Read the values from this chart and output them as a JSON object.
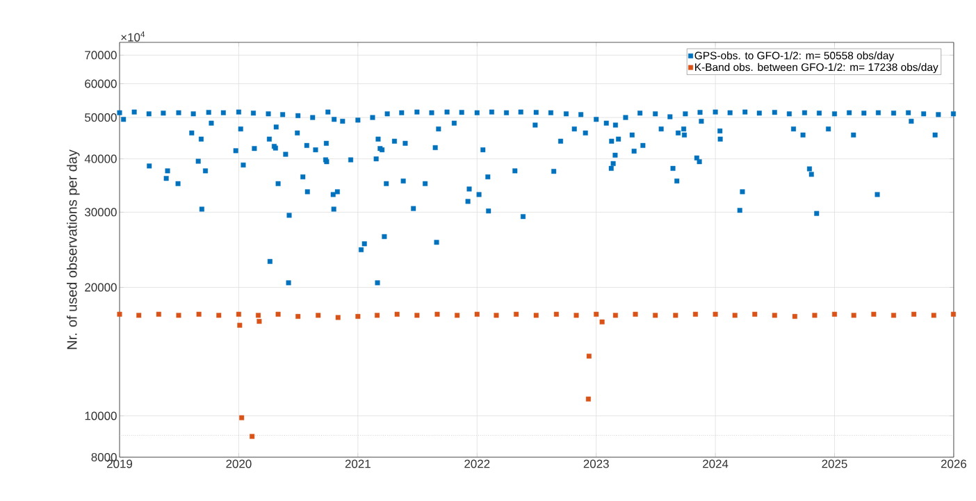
{
  "chart_data": {
    "type": "scatter",
    "ylabel": "Nr. of used observations per day",
    "annotations": [
      "×10$^{4}$"
    ],
    "log": "y",
    "grid": true,
    "legend": "top right",
    "marker": "square",
    "xlim": [
      "2019-01-01",
      "2026-01-01"
    ],
    "xticks": [
      {
        "value": "2019-01-01",
        "label": "2019"
      },
      {
        "value": "2020-01-01",
        "label": "2020"
      },
      {
        "value": "2021-01-01",
        "label": "2021"
      },
      {
        "value": "2022-01-01",
        "label": "2022"
      },
      {
        "value": "2023-01-01",
        "label": "2023"
      },
      {
        "value": "2024-01-01",
        "label": "2024"
      },
      {
        "value": "2025-01-01",
        "label": "2025"
      },
      {
        "value": "2026-01-01",
        "label": "2026"
      }
    ],
    "ylim": [
      8000,
      75000
    ],
    "yticks": [
      8000,
      10000,
      20000,
      30000,
      40000,
      50000,
      60000,
      70000
    ],
    "ref_lines": [
      {
        "axis": "y",
        "value": 9000,
        "label": null,
        "color": "#bbbbbb",
        "line_style": "dotted"
      }
    ],
    "series": [
      {
        "name": "GPS-obs. to GFO-1/2: m= 50558 obs/day",
        "color": "#0072bd",
        "x": [
          "2019-01-01",
          "2019-02-15",
          "2019-04-01",
          "2019-05-15",
          "2019-07-01",
          "2019-08-15",
          "2019-10-01",
          "2019-11-15",
          "2020-01-01",
          "2020-02-15",
          "2020-04-01",
          "2020-05-15",
          "2020-07-01",
          "2020-08-15",
          "2020-10-01",
          "2020-10-20",
          "2020-11-15",
          "2021-01-01",
          "2021-02-15",
          "2021-04-01",
          "2021-05-15",
          "2021-07-01",
          "2021-08-15",
          "2021-10-01",
          "2021-11-15",
          "2022-01-01",
          "2022-02-15",
          "2022-04-01",
          "2022-05-15",
          "2022-07-01",
          "2022-08-15",
          "2022-10-01",
          "2022-11-15",
          "2023-01-01",
          "2023-02-01",
          "2023-03-01",
          "2023-04-01",
          "2023-05-15",
          "2023-07-01",
          "2023-08-15",
          "2023-10-01",
          "2023-11-15",
          "2024-01-01",
          "2024-02-15",
          "2024-04-01",
          "2024-05-15",
          "2024-07-01",
          "2024-08-15",
          "2024-10-01",
          "2024-11-15",
          "2025-01-01",
          "2025-02-15",
          "2025-04-01",
          "2025-05-15",
          "2025-07-01",
          "2025-08-15",
          "2025-10-01",
          "2025-11-15",
          "2025-12-31",
          "2019-01-13",
          "2019-04-02",
          "2019-05-24",
          "2019-05-28",
          "2019-06-29",
          "2019-08-10",
          "2019-08-30",
          "2019-09-08",
          "2019-09-10",
          "2019-09-21",
          "2019-10-09",
          "2019-12-23",
          "2020-01-07",
          "2020-01-15",
          "2020-02-18",
          "2020-04-04",
          "2020-04-06",
          "2020-04-19",
          "2020-04-23",
          "2020-04-25",
          "2020-05-01",
          "2020-05-24",
          "2020-06-02",
          "2020-06-04",
          "2020-06-29",
          "2020-07-16",
          "2020-07-28",
          "2020-07-30",
          "2020-08-24",
          "2020-09-24",
          "2020-09-26",
          "2020-09-27",
          "2020-10-17",
          "2020-10-19",
          "2020-10-30",
          "2020-12-10",
          "2021-01-11",
          "2021-01-21",
          "2021-02-26",
          "2021-03-02",
          "2021-03-04",
          "2021-03-10",
          "2021-03-16",
          "2021-03-23",
          "2021-03-29",
          "2021-04-23",
          "2021-05-20",
          "2021-05-26",
          "2021-06-20",
          "2021-07-26",
          "2021-08-26",
          "2021-08-30",
          "2021-09-05",
          "2021-10-23",
          "2021-12-04",
          "2021-12-08",
          "2022-01-07",
          "2022-01-19",
          "2022-02-03",
          "2022-02-05",
          "2022-04-27",
          "2022-05-22",
          "2022-06-28",
          "2022-08-24",
          "2022-09-14",
          "2022-10-26",
          "2022-11-29",
          "2023-02-16",
          "2023-02-17",
          "2023-02-22",
          "2023-02-28",
          "2023-03-10",
          "2023-04-21",
          "2023-04-27",
          "2023-05-24",
          "2023-07-19",
          "2023-08-24",
          "2023-09-05",
          "2023-09-09",
          "2023-09-26",
          "2023-09-28",
          "2023-11-05",
          "2023-11-13",
          "2023-11-19",
          "2024-01-15",
          "2024-01-16",
          "2024-03-16",
          "2024-03-24",
          "2024-08-28",
          "2024-09-26",
          "2024-10-16",
          "2024-10-22",
          "2024-11-07",
          "2024-12-13",
          "2025-02-28",
          "2025-05-12",
          "2025-08-24",
          "2025-11-05"
        ],
        "values": [
          51300,
          51500,
          51000,
          51200,
          51300,
          51000,
          51400,
          51300,
          51500,
          51200,
          51000,
          50800,
          50500,
          50000,
          51500,
          49500,
          49000,
          49300,
          50000,
          51000,
          51300,
          51500,
          51300,
          51500,
          51400,
          51300,
          51500,
          51300,
          51500,
          51400,
          51300,
          51000,
          50800,
          49500,
          48500,
          48000,
          50000,
          51200,
          51000,
          50200,
          51000,
          51400,
          51500,
          51300,
          51500,
          51200,
          51400,
          51000,
          51300,
          51200,
          51000,
          51300,
          51200,
          51300,
          51200,
          51300,
          51000,
          50800,
          51000,
          49500,
          38500,
          36000,
          37500,
          35000,
          46000,
          39500,
          44500,
          30500,
          37500,
          48500,
          41800,
          47000,
          38700,
          42300,
          44500,
          23000,
          42800,
          42400,
          47500,
          35000,
          41000,
          20500,
          29500,
          46000,
          36300,
          43000,
          33500,
          42000,
          39800,
          43500,
          39400,
          33000,
          30500,
          33500,
          39800,
          24500,
          25300,
          40000,
          20500,
          44500,
          42300,
          42000,
          26300,
          35000,
          44000,
          35500,
          43500,
          30600,
          35000,
          42500,
          25500,
          47000,
          48500,
          31800,
          34000,
          33000,
          42000,
          36300,
          30200,
          37500,
          29300,
          48000,
          37400,
          44000,
          47000,
          46000,
          38000,
          44000,
          39000,
          40800,
          44500,
          45500,
          41700,
          43000,
          47000,
          38000,
          35500,
          46000,
          47000,
          45500,
          40200,
          39400,
          49000,
          46500,
          44500,
          30300,
          33500,
          47000,
          45500,
          37900,
          36800,
          29800,
          47000,
          45500,
          33000,
          49000,
          45500
        ]
      },
      {
        "name": "K-Band obs. between GFO-1/2: m= 17238 obs/day",
        "color": "#d95319",
        "x": [
          "2019-01-01",
          "2019-03-01",
          "2019-05-01",
          "2019-07-01",
          "2019-09-01",
          "2019-11-01",
          "2020-01-01",
          "2020-03-01",
          "2020-05-01",
          "2020-07-01",
          "2020-09-01",
          "2020-11-01",
          "2021-01-01",
          "2021-03-01",
          "2021-05-01",
          "2021-07-01",
          "2021-09-01",
          "2021-11-01",
          "2022-01-01",
          "2022-03-01",
          "2022-05-01",
          "2022-07-01",
          "2022-09-01",
          "2022-11-01",
          "2023-01-01",
          "2023-03-01",
          "2023-05-01",
          "2023-07-01",
          "2023-09-01",
          "2023-11-01",
          "2024-01-01",
          "2024-03-01",
          "2024-05-01",
          "2024-07-01",
          "2024-09-01",
          "2024-11-01",
          "2025-01-01",
          "2025-03-01",
          "2025-05-01",
          "2025-07-01",
          "2025-09-01",
          "2025-11-01",
          "2025-12-31",
          "2020-01-04",
          "2020-01-10",
          "2020-02-11",
          "2020-03-04",
          "2022-12-08",
          "2022-12-10",
          "2023-01-19"
        ],
        "values": [
          17300,
          17200,
          17300,
          17200,
          17300,
          17200,
          17300,
          17200,
          17300,
          17100,
          17200,
          17000,
          17100,
          17200,
          17300,
          17200,
          17300,
          17200,
          17300,
          17200,
          17300,
          17200,
          17300,
          17200,
          17300,
          17200,
          17300,
          17200,
          17200,
          17300,
          17300,
          17200,
          17300,
          17200,
          17100,
          17200,
          17300,
          17200,
          17300,
          17200,
          17300,
          17200,
          17300,
          16300,
          9900,
          8950,
          16650,
          10950,
          13800,
          16600
        ]
      }
    ]
  }
}
